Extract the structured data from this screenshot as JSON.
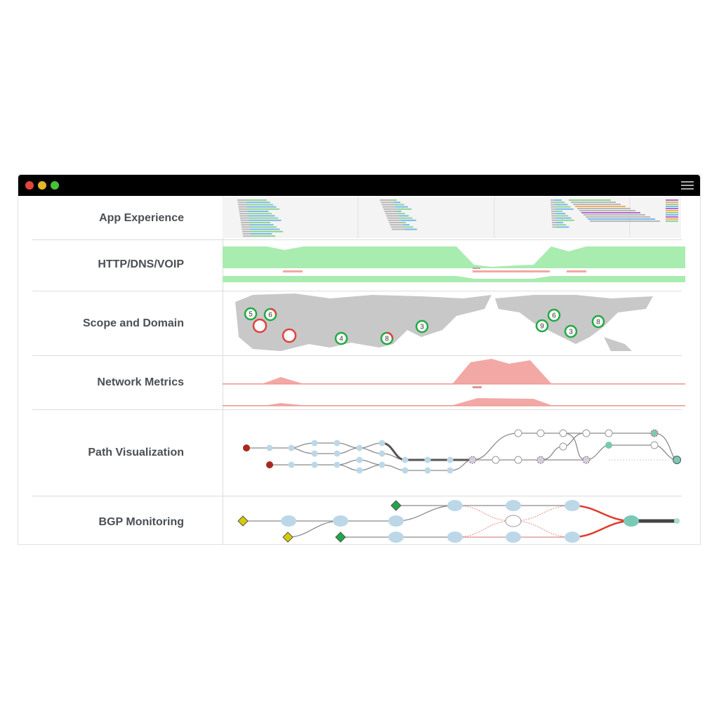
{
  "window": {
    "controls": [
      "close",
      "minimize",
      "maximize"
    ],
    "menu_icon": "hamburger-menu-icon"
  },
  "rows": [
    {
      "label": "App Experience"
    },
    {
      "label": "HTTP/DNS/VOIP"
    },
    {
      "label": "Scope and Domain"
    },
    {
      "label": "Network Metrics"
    },
    {
      "label": "Path Visualization"
    },
    {
      "label": "BGP Monitoring"
    }
  ],
  "map_badges": [
    {
      "value": "5",
      "status": "ok"
    },
    {
      "value": "6",
      "status": "mixed"
    },
    {
      "value": "",
      "status": "alert"
    },
    {
      "value": "",
      "status": "alert"
    },
    {
      "value": "4",
      "status": "ok"
    },
    {
      "value": "8",
      "status": "mixed"
    },
    {
      "value": "3",
      "status": "ok"
    },
    {
      "value": "6",
      "status": "ok"
    },
    {
      "value": "9",
      "status": "ok"
    },
    {
      "value": "3",
      "status": "ok"
    },
    {
      "value": "8",
      "status": "ok"
    }
  ],
  "colors": {
    "ok": "#22aa44",
    "alert": "#e0403a",
    "availability": "#a8ecb0",
    "loss": "#f2a8a4",
    "node": "#bcd8e8",
    "target": "#78c9b5",
    "source": "#a82a1e",
    "asn_origin": "#d4cc00",
    "asn_prefix": "#1ea84a"
  }
}
